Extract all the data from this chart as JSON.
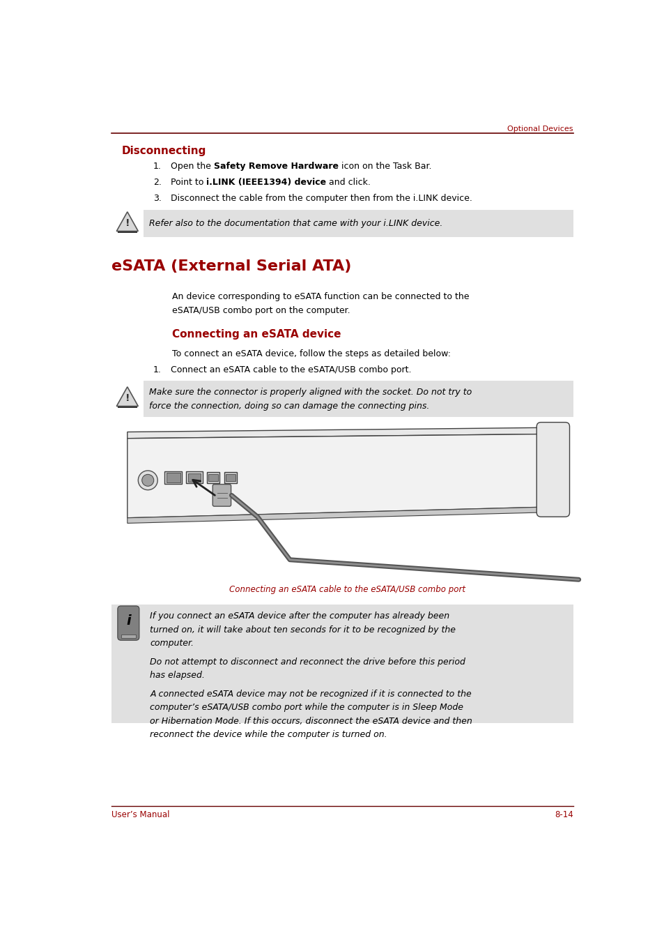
{
  "page_width": 9.54,
  "page_height": 13.51,
  "bg_color": "#ffffff",
  "red_color": "#990000",
  "light_gray": "#E0E0E0",
  "text_color": "#000000",
  "header_text": "Optional Devices",
  "footer_left": "User’s Manual",
  "footer_right": "8-14",
  "section_disconnecting": "Disconnecting",
  "item1_pre": "Open the ",
  "item1_bold": "Safety Remove Hardware",
  "item1_post": " icon on the Task Bar.",
  "item2_pre": "Point to ",
  "item2_bold": "i.LINK (IEEE1394) device",
  "item2_post": " and click.",
  "item3": "Disconnect the cable from the computer then from the i.LINK device.",
  "caution1": "Refer also to the documentation that came with your i.LINK device.",
  "section_esata": "eSATA (External Serial ATA)",
  "esata_desc1": "An device corresponding to eSATA function can be connected to the",
  "esata_desc2": "eSATA/USB combo port on the computer.",
  "section_connecting": "Connecting an eSATA device",
  "connecting_desc": "To connect an eSATA device, follow the steps as detailed below:",
  "connect_item1": "Connect an eSATA cable to the eSATA/USB combo port.",
  "caution2_line1": "Make sure the connector is properly aligned with the socket. Do not try to",
  "caution2_line2": "force the connection, doing so can damage the connecting pins.",
  "image_caption": "Connecting an eSATA cable to the eSATA/USB combo port",
  "info_para1_l1": "If you connect an eSATA device after the computer has already been",
  "info_para1_l2": "turned on, it will take about ten seconds for it to be recognized by the",
  "info_para1_l3": "computer.",
  "info_para2_l1": "Do not attempt to disconnect and reconnect the drive before this period",
  "info_para2_l2": "has elapsed.",
  "info_para3_l1": "A connected eSATA device may not be recognized if it is connected to the",
  "info_para3_l2": "computer’s eSATA/USB combo port while the computer is in Sleep Mode",
  "info_para3_l3": "or Hibernation Mode. If this occurs, disconnect the eSATA device and then",
  "info_para3_l4": "reconnect the device while the computer is turned on."
}
